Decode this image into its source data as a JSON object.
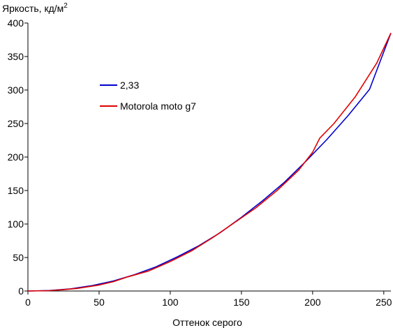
{
  "chart_data": {
    "type": "line",
    "title": "",
    "ylabel": "Яркость, кд/м",
    "ylabel_sup": "2",
    "xlabel": "Оттенок серого",
    "xlim": [
      0,
      255
    ],
    "ylim": [
      0,
      400
    ],
    "xticks": [
      0,
      50,
      100,
      150,
      200,
      250
    ],
    "yticks": [
      0,
      50,
      100,
      150,
      200,
      250,
      300,
      350,
      400
    ],
    "grid": false,
    "legend": "upper-left-inside",
    "series": [
      {
        "name": "2,33",
        "color": "#0000cc",
        "x": [
          0,
          15,
          30,
          45,
          60,
          75,
          90,
          105,
          120,
          135,
          150,
          165,
          180,
          195,
          210,
          225,
          240,
          255
        ],
        "y": [
          0,
          0.7,
          3.2,
          8,
          15,
          24.5,
          36,
          51,
          67.5,
          87,
          110,
          135,
          162,
          193,
          226,
          262,
          301,
          385
        ]
      },
      {
        "name": "Motorola moto g7",
        "color": "#e00000",
        "x": [
          0,
          15,
          25,
          35,
          50,
          60,
          70,
          85,
          100,
          115,
          130,
          145,
          160,
          175,
          190,
          200,
          205,
          215,
          230,
          245,
          255
        ],
        "y": [
          0,
          0.5,
          2,
          4,
          9,
          14,
          21,
          30,
          44,
          60,
          80,
          102,
          124,
          150,
          180,
          207,
          228,
          250,
          290,
          340,
          385
        ]
      }
    ]
  }
}
